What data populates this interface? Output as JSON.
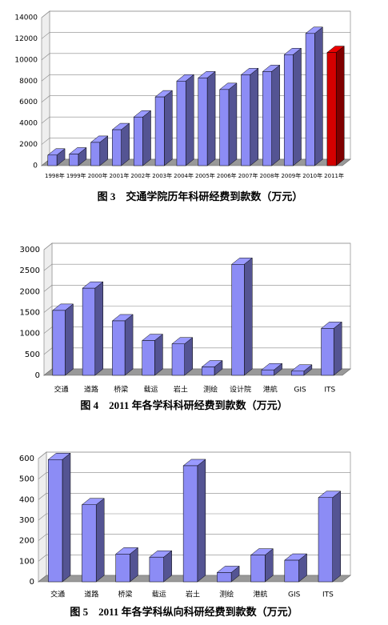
{
  "chart_data": [
    {
      "type": "bar",
      "caption": "图 3　交通学院历年科研经费到款数（万元）",
      "categories": [
        "1998年",
        "1999年",
        "2000年",
        "2001年",
        "2002年",
        "2003年",
        "2004年",
        "2005年",
        "2006年",
        "2007年",
        "2008年",
        "2009年",
        "2010年",
        "2011年"
      ],
      "values": [
        1000,
        1100,
        2200,
        3400,
        4600,
        6500,
        8000,
        8300,
        7200,
        8600,
        8900,
        10500,
        12500,
        10700
      ],
      "colors": [
        "#8c8cf5",
        "#8c8cf5",
        "#8c8cf5",
        "#8c8cf5",
        "#8c8cf5",
        "#8c8cf5",
        "#8c8cf5",
        "#8c8cf5",
        "#8c8cf5",
        "#8c8cf5",
        "#8c8cf5",
        "#8c8cf5",
        "#8c8cf5",
        "#d40000"
      ],
      "ylim": [
        0,
        14000
      ],
      "yticks": [
        0,
        2000,
        4000,
        6000,
        8000,
        10000,
        12000,
        14000
      ]
    },
    {
      "type": "bar",
      "caption": "图 4　2011 年各学科科研经费到款数（万元）",
      "categories": [
        "交通",
        "道路",
        "桥梁",
        "载运",
        "岩土",
        "测绘",
        "设计院",
        "港航",
        "GIS",
        "ITS"
      ],
      "values": [
        1550,
        2080,
        1300,
        830,
        750,
        200,
        2650,
        130,
        100,
        1120
      ],
      "color": "#8c8cf5",
      "ylim": [
        0,
        3000
      ],
      "yticks": [
        0,
        500,
        1000,
        1500,
        2000,
        2500,
        3000
      ]
    },
    {
      "type": "bar",
      "caption": "图 5　2011 年各学科纵向科研经费到款数（万元）",
      "categories": [
        "交通",
        "道路",
        "桥梁",
        "载运",
        "岩土",
        "测绘",
        "港航",
        "GIS",
        "ITS"
      ],
      "values": [
        595,
        375,
        135,
        120,
        565,
        45,
        130,
        105,
        410
      ],
      "color": "#8c8cf5",
      "ylim": [
        0,
        600
      ],
      "yticks": [
        0,
        100,
        200,
        300,
        400,
        500,
        600
      ]
    }
  ]
}
